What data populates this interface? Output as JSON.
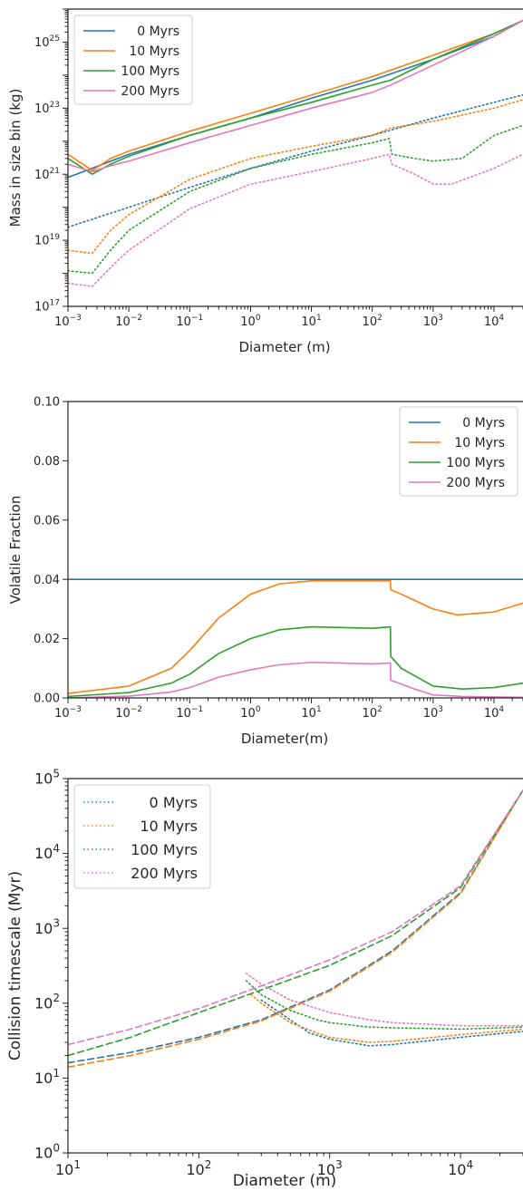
{
  "colors": {
    "0 Myrs": "#1f77b4",
    "10 Myrs": "#ff7f0e",
    "100 Myrs": "#2ca02c",
    "200 Myrs": "#e377c2"
  },
  "chart_data": [
    {
      "type": "line",
      "xscale": "log",
      "yscale": "log",
      "xlabel": "Diameter (m)",
      "ylabel": "Mass in size bin (kg)",
      "xlim": [
        0.001,
        30000
      ],
      "ylim": [
        1e+17,
        1e+26
      ],
      "grid": false,
      "legend": "top-left",
      "legend_entries": [
        "0 Myrs",
        "10 Myrs",
        "100 Myrs",
        "200 Myrs"
      ],
      "xticks": [
        {
          "v": 0.001,
          "base": "10",
          "exp": "−3"
        },
        {
          "v": 0.01,
          "base": "10",
          "exp": "−2"
        },
        {
          "v": 0.1,
          "base": "10",
          "exp": "−1"
        },
        {
          "v": 1,
          "base": "10",
          "exp": "0"
        },
        {
          "v": 10,
          "base": "10",
          "exp": "1"
        },
        {
          "v": 100,
          "base": "10",
          "exp": "2"
        },
        {
          "v": 1000,
          "base": "10",
          "exp": "3"
        },
        {
          "v": 10000,
          "base": "10",
          "exp": "4"
        }
      ],
      "yticks": [
        {
          "v": 1e+17,
          "base": "10",
          "exp": "17"
        },
        {
          "v": 1e+19,
          "base": "10",
          "exp": "19"
        },
        {
          "v": 1e+21,
          "base": "10",
          "exp": "21"
        },
        {
          "v": 1e+23,
          "base": "10",
          "exp": "23"
        },
        {
          "v": 1e+25,
          "base": "10",
          "exp": "25"
        }
      ],
      "series": [
        {
          "name": "0 Myrs",
          "style": "solid",
          "x": [
            0.001,
            0.01,
            0.1,
            1,
            10,
            100,
            1000,
            10000,
            30000
          ],
          "y": [
            8e+20,
            4e+21,
            1.5e+22,
            5e+22,
            2e+23,
            7e+23,
            3e+24,
            1.5e+25,
            4.5e+25
          ]
        },
        {
          "name": "10 Myrs",
          "style": "solid",
          "x": [
            0.001,
            0.0025,
            0.005,
            0.01,
            0.1,
            1,
            10,
            100,
            1000,
            10000,
            30000
          ],
          "y": [
            4e+21,
            1.3e+21,
            3e+21,
            5e+21,
            2e+22,
            7e+22,
            2.5e+23,
            9e+23,
            4e+24,
            1.8e+25,
            4.5e+25
          ]
        },
        {
          "name": "100 Myrs",
          "style": "solid",
          "x": [
            0.001,
            0.0025,
            0.005,
            0.01,
            0.1,
            1,
            10,
            100,
            200,
            1000,
            10000,
            30000
          ],
          "y": [
            3e+21,
            1e+21,
            2e+21,
            3.5e+21,
            1.5e+22,
            5e+22,
            1.5e+23,
            5e+23,
            7e+23,
            3e+24,
            1.8e+25,
            4.5e+25
          ]
        },
        {
          "name": "200 Myrs",
          "style": "solid",
          "x": [
            0.001,
            0.0025,
            0.005,
            0.01,
            0.1,
            1,
            10,
            100,
            200,
            1000,
            10000,
            30000
          ],
          "y": [
            2e+21,
            1.2e+21,
            1.8e+21,
            2.5e+21,
            9e+21,
            3e+22,
            1e+23,
            3e+23,
            5e+23,
            2e+24,
            1.5e+25,
            4.5e+25
          ]
        },
        {
          "name": "0 Myrs",
          "style": "dotted",
          "x": [
            0.001,
            0.01,
            0.1,
            1,
            10,
            100,
            1000,
            10000,
            30000
          ],
          "y": [
            2.5e+19,
            1e+20,
            4e+20,
            1.5e+21,
            5e+21,
            1.5e+22,
            5e+22,
            1.5e+23,
            2.5e+23
          ]
        },
        {
          "name": "10 Myrs",
          "style": "dotted",
          "x": [
            0.001,
            0.0025,
            0.005,
            0.01,
            0.1,
            1,
            10,
            100,
            200,
            1000,
            10000,
            30000
          ],
          "y": [
            5e+18,
            4e+18,
            2e+19,
            6e+19,
            7e+20,
            3e+21,
            7e+21,
            1.5e+22,
            2.5e+22,
            4e+22,
            1e+23,
            1.8e+23
          ]
        },
        {
          "name": "100 Myrs",
          "style": "dotted",
          "x": [
            0.001,
            0.0025,
            0.005,
            0.01,
            0.1,
            1,
            10,
            100,
            190,
            210,
            500,
            1000,
            3000,
            10000,
            30000
          ],
          "y": [
            1.2e+18,
            1e+18,
            5e+18,
            2e+19,
            3e+20,
            1.5e+21,
            4e+21,
            9e+21,
            1.2e+22,
            4e+21,
            3e+21,
            2.5e+21,
            3e+21,
            1.5e+22,
            3e+22
          ]
        },
        {
          "name": "200 Myrs",
          "style": "dotted",
          "x": [
            0.001,
            0.0025,
            0.005,
            0.01,
            0.1,
            1,
            10,
            100,
            190,
            210,
            500,
            1000,
            2000,
            10000,
            30000
          ],
          "y": [
            5e+17,
            4e+17,
            1.5e+18,
            5e+18,
            9e+19,
            5e+20,
            1.2e+21,
            3e+21,
            4e+21,
            2e+21,
            1e+21,
            5e+20,
            5e+20,
            1.5e+21,
            4e+21
          ]
        }
      ]
    },
    {
      "type": "line",
      "xscale": "log",
      "yscale": "linear",
      "xlabel": "Diameter(m)",
      "ylabel": "Volatile Fraction",
      "xlim": [
        0.001,
        30000
      ],
      "ylim": [
        0,
        0.1
      ],
      "grid": false,
      "legend": "top-right",
      "legend_entries": [
        "0 Myrs",
        "10 Myrs",
        "100 Myrs",
        "200 Myrs"
      ],
      "xticks": [
        {
          "v": 0.001,
          "base": "10",
          "exp": "−3"
        },
        {
          "v": 0.01,
          "base": "10",
          "exp": "−2"
        },
        {
          "v": 0.1,
          "base": "10",
          "exp": "−1"
        },
        {
          "v": 1,
          "base": "10",
          "exp": "0"
        },
        {
          "v": 10,
          "base": "10",
          "exp": "1"
        },
        {
          "v": 100,
          "base": "10",
          "exp": "2"
        },
        {
          "v": 1000,
          "base": "10",
          "exp": "3"
        },
        {
          "v": 10000,
          "base": "10",
          "exp": "4"
        }
      ],
      "yticks": [
        {
          "v": 0,
          "label": "0.00"
        },
        {
          "v": 0.02,
          "label": "0.02"
        },
        {
          "v": 0.04,
          "label": "0.04"
        },
        {
          "v": 0.06,
          "label": "0.06"
        },
        {
          "v": 0.08,
          "label": "0.08"
        },
        {
          "v": 0.1,
          "label": "0.10"
        }
      ],
      "series": [
        {
          "name": "0 Myrs",
          "style": "solid",
          "x": [
            0.001,
            30000
          ],
          "y": [
            0.04,
            0.04
          ]
        },
        {
          "name": "10 Myrs",
          "style": "solid",
          "x": [
            0.001,
            0.01,
            0.05,
            0.1,
            0.3,
            1,
            3,
            10,
            100,
            199,
            201,
            300,
            1000,
            2500,
            10000,
            30000
          ],
          "y": [
            0.0015,
            0.004,
            0.01,
            0.016,
            0.027,
            0.035,
            0.0385,
            0.0395,
            0.0395,
            0.0395,
            0.0365,
            0.035,
            0.03,
            0.028,
            0.029,
            0.032
          ]
        },
        {
          "name": "100 Myrs",
          "style": "solid",
          "x": [
            0.001,
            0.01,
            0.05,
            0.1,
            0.3,
            1,
            3,
            10,
            100,
            199,
            201,
            300,
            1000,
            3000,
            10000,
            30000
          ],
          "y": [
            0.0005,
            0.0018,
            0.005,
            0.008,
            0.015,
            0.02,
            0.023,
            0.024,
            0.0235,
            0.024,
            0.014,
            0.01,
            0.004,
            0.003,
            0.0035,
            0.005
          ]
        },
        {
          "name": "200 Myrs",
          "style": "solid",
          "x": [
            0.001,
            0.01,
            0.05,
            0.1,
            0.3,
            1,
            3,
            10,
            100,
            199,
            201,
            500,
            1000,
            3000,
            30000
          ],
          "y": [
            0.0,
            0.0006,
            0.002,
            0.0035,
            0.007,
            0.0095,
            0.0112,
            0.012,
            0.0115,
            0.0118,
            0.006,
            0.003,
            0.001,
            0.0005,
            0.0002
          ]
        }
      ]
    },
    {
      "type": "line",
      "xscale": "log",
      "yscale": "log",
      "xlabel": "Diameter (m)",
      "ylabel": "Collision timescale (Myr)",
      "xlim": [
        10,
        30000
      ],
      "ylim": [
        1,
        100000
      ],
      "grid": false,
      "legend": "top-left",
      "legend_entries": [
        "0 Myrs",
        "10 Myrs",
        "100 Myrs",
        "200 Myrs"
      ],
      "xticks": [
        {
          "v": 10,
          "base": "10",
          "exp": "1"
        },
        {
          "v": 100,
          "base": "10",
          "exp": "2"
        },
        {
          "v": 1000,
          "base": "10",
          "exp": "3"
        },
        {
          "v": 10000,
          "base": "10",
          "exp": "4"
        }
      ],
      "yticks": [
        {
          "v": 1,
          "base": "10",
          "exp": "0"
        },
        {
          "v": 10,
          "base": "10",
          "exp": "1"
        },
        {
          "v": 100,
          "base": "10",
          "exp": "2"
        },
        {
          "v": 1000,
          "base": "10",
          "exp": "3"
        },
        {
          "v": 10000,
          "base": "10",
          "exp": "4"
        },
        {
          "v": 100000,
          "base": "10",
          "exp": "5"
        }
      ],
      "series": [
        {
          "name": "0 Myrs",
          "style": "dashed",
          "x": [
            10,
            30,
            100,
            300,
            1000,
            3000,
            10000,
            30000
          ],
          "y": [
            16,
            22,
            35,
            60,
            150,
            500,
            3000,
            70000
          ]
        },
        {
          "name": "10 Myrs",
          "style": "dashed",
          "x": [
            10,
            30,
            100,
            300,
            1000,
            3000,
            10000,
            30000
          ],
          "y": [
            14,
            20,
            33,
            58,
            145,
            480,
            2900,
            70000
          ]
        },
        {
          "name": "100 Myrs",
          "style": "dashed",
          "x": [
            10,
            30,
            100,
            300,
            1000,
            3000,
            10000,
            30000
          ],
          "y": [
            20,
            35,
            75,
            150,
            320,
            800,
            3500,
            70000
          ]
        },
        {
          "name": "200 Myrs",
          "style": "dashed",
          "x": [
            10,
            30,
            100,
            300,
            1000,
            3000,
            10000,
            30000
          ],
          "y": [
            28,
            45,
            85,
            170,
            380,
            900,
            3700,
            70000
          ]
        },
        {
          "name": "0 Myrs",
          "style": "dotted",
          "x": [
            300,
            500,
            700,
            1000,
            2000,
            3000,
            10000,
            30000
          ],
          "y": [
            110,
            60,
            40,
            33,
            27,
            28,
            35,
            42
          ]
        },
        {
          "name": "10 Myrs",
          "style": "dotted",
          "x": [
            250,
            300,
            500,
            800,
            1000,
            2000,
            3000,
            10000,
            30000
          ],
          "y": [
            130,
            100,
            55,
            40,
            35,
            30,
            31,
            38,
            45
          ]
        },
        {
          "name": "100 Myrs",
          "style": "dotted",
          "x": [
            230,
            300,
            500,
            800,
            1000,
            2000,
            3000,
            10000,
            30000
          ],
          "y": [
            200,
            130,
            80,
            60,
            55,
            48,
            47,
            45,
            48
          ]
        },
        {
          "name": "200 Myrs",
          "style": "dotted",
          "x": [
            230,
            300,
            500,
            800,
            1000,
            2000,
            3000,
            10000,
            30000
          ],
          "y": [
            250,
            180,
            110,
            85,
            75,
            60,
            55,
            50,
            50
          ]
        }
      ]
    }
  ]
}
